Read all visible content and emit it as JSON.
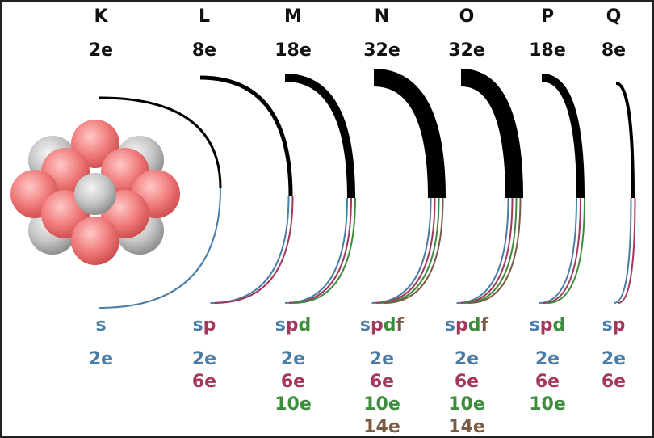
{
  "shells": [
    {
      "name": "K",
      "capacity": "2e",
      "subshells": [
        {
          "letter": "s",
          "capacity": "2e"
        }
      ]
    },
    {
      "name": "L",
      "capacity": "8e",
      "subshells": [
        {
          "letter": "s",
          "capacity": "2e"
        },
        {
          "letter": "p",
          "capacity": "6e"
        }
      ]
    },
    {
      "name": "M",
      "capacity": "18e",
      "subshells": [
        {
          "letter": "s",
          "capacity": "2e"
        },
        {
          "letter": "p",
          "capacity": "6e"
        },
        {
          "letter": "d",
          "capacity": "10e"
        }
      ]
    },
    {
      "name": "N",
      "capacity": "32e",
      "subshells": [
        {
          "letter": "s",
          "capacity": "2e"
        },
        {
          "letter": "p",
          "capacity": "6e"
        },
        {
          "letter": "d",
          "capacity": "10e"
        },
        {
          "letter": "f",
          "capacity": "14e"
        }
      ]
    },
    {
      "name": "O",
      "capacity": "32e",
      "subshells": [
        {
          "letter": "s",
          "capacity": "2e"
        },
        {
          "letter": "p",
          "capacity": "6e"
        },
        {
          "letter": "d",
          "capacity": "10e"
        },
        {
          "letter": "f",
          "capacity": "14e"
        }
      ]
    },
    {
      "name": "P",
      "capacity": "18e",
      "subshells": [
        {
          "letter": "s",
          "capacity": "2e"
        },
        {
          "letter": "p",
          "capacity": "6e"
        },
        {
          "letter": "d",
          "capacity": "10e"
        }
      ]
    },
    {
      "name": "Q",
      "capacity": "8e",
      "subshells": [
        {
          "letter": "s",
          "capacity": "2e"
        },
        {
          "letter": "p",
          "capacity": "6e"
        }
      ]
    }
  ]
}
